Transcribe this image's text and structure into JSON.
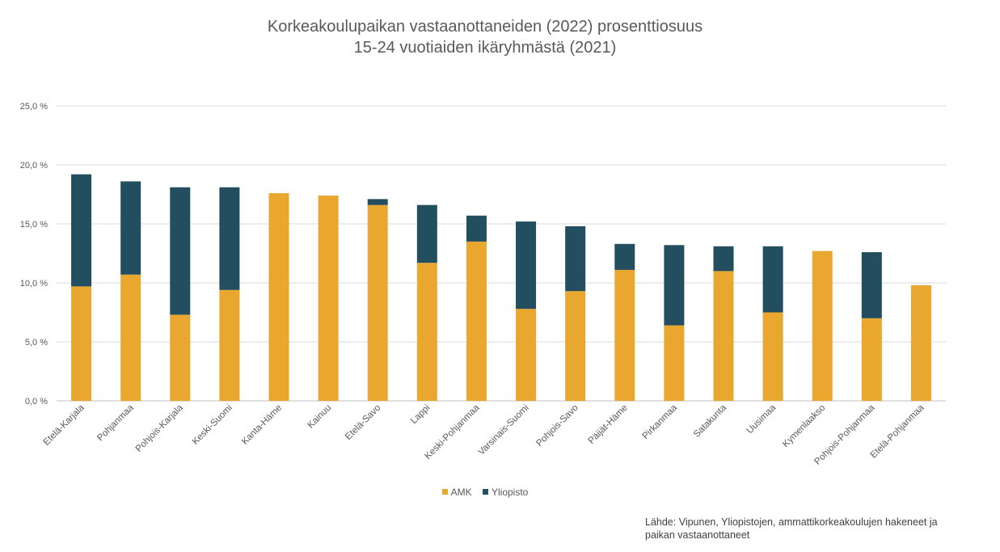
{
  "chart_data": {
    "type": "bar",
    "stacked": true,
    "title_line1": "Korkeakoulupaikan vastaanottaneiden (2022) prosenttiosuus",
    "title_line2": "15-24 vuotiaiden ikäryhmästä (2021)",
    "categories": [
      "Etelä-Karjala",
      "Pohjanmaa",
      "Pohjois-Karjala",
      "Keski-Suomi",
      "Kanta-Häme",
      "Kainuu",
      "Etelä-Savo",
      "Lappi",
      "Keski-Pohjanmaa",
      "Varsinais-Suomi",
      "Pohjois-Savo",
      "Päijät-Häme",
      "Pirkanmaa",
      "Satakunta",
      "Uusimaa",
      "Kymenlaakso",
      "Pohjois-Pohjanmaa",
      "Etelä-Pohjanmaa"
    ],
    "series": [
      {
        "name": "AMK",
        "color": "#E9A730",
        "values": [
          9.7,
          10.7,
          7.3,
          9.4,
          17.6,
          17.4,
          16.6,
          11.7,
          13.5,
          7.8,
          9.3,
          11.1,
          6.4,
          11.0,
          7.5,
          12.7,
          7.0,
          9.8
        ]
      },
      {
        "name": "Yliopisto",
        "color": "#224E5F",
        "values": [
          9.5,
          7.9,
          10.8,
          8.7,
          0.0,
          0.0,
          0.5,
          4.9,
          2.2,
          7.4,
          5.5,
          2.2,
          6.8,
          2.1,
          5.6,
          0.0,
          5.6,
          0.0
        ]
      }
    ],
    "yticks": [
      "0,0 %",
      "5,0 %",
      "10,0 %",
      "15,0 %",
      "20,0 %",
      "25,0 %"
    ],
    "ylim": [
      0,
      25
    ],
    "grid": true,
    "legend_position": "bottom"
  },
  "source_line1": "Lähde: Vipunen, Yliopistojen, ammattikorkeakoulujen  hakeneet ja",
  "source_line2": "paikan vastaanottaneet"
}
